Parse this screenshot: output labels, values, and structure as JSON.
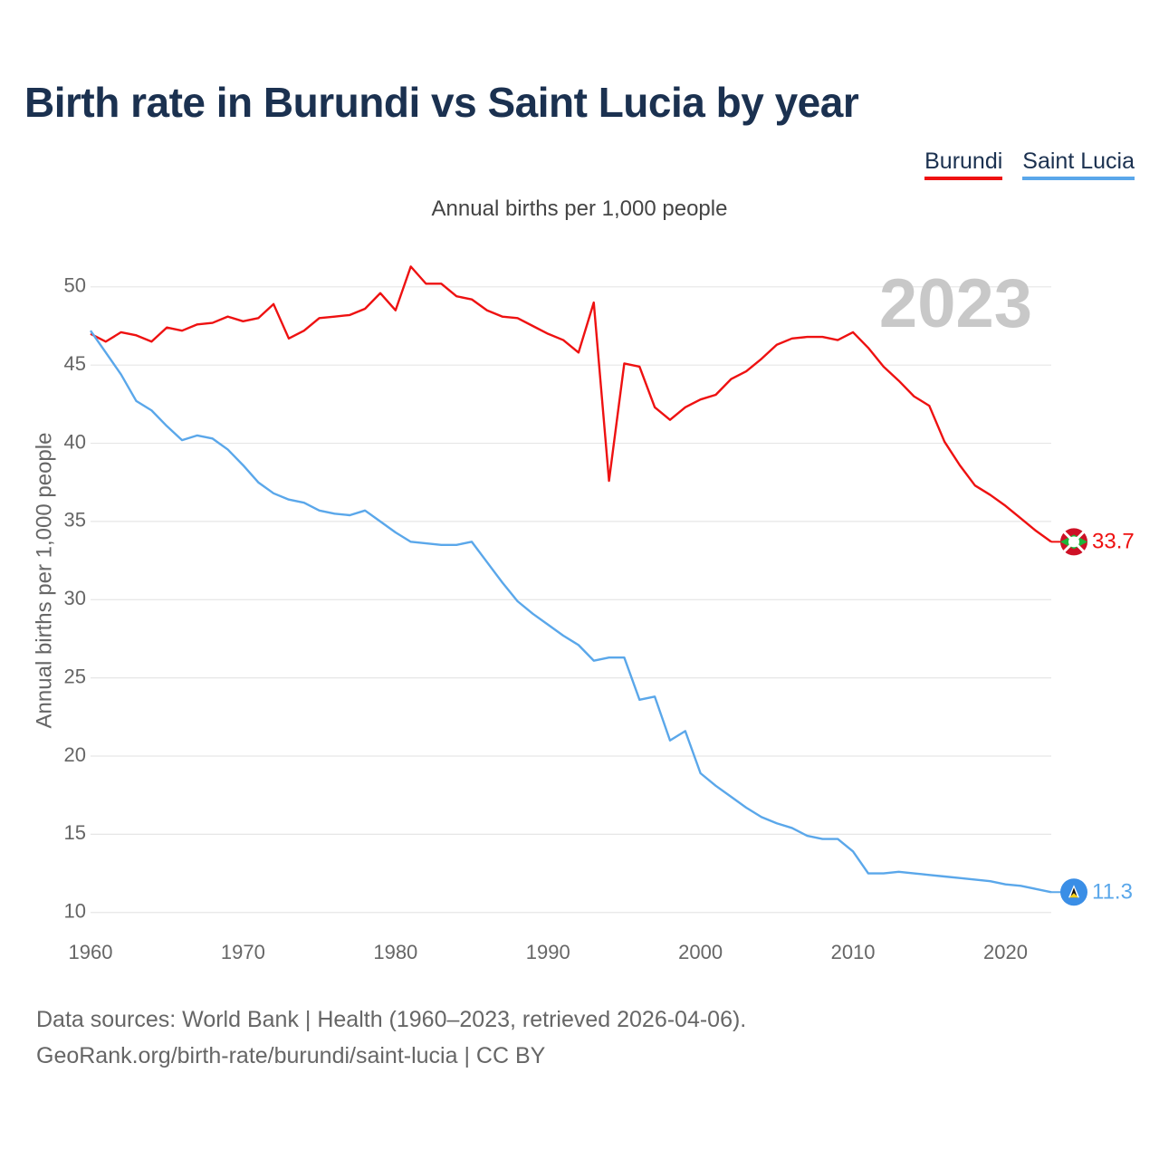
{
  "header": {
    "title": "Birth rate in Burundi vs Saint Lucia by year",
    "subtitle": "Annual births per 1,000 people"
  },
  "legend": {
    "items": [
      {
        "label": "Burundi",
        "color": "#ee1111"
      },
      {
        "label": "Saint Lucia",
        "color": "#5aa7ea"
      }
    ]
  },
  "footer": {
    "line1": "Data sources: World Bank | Health (1960–2023, retrieved 2026-04-06).",
    "line2": "GeoRank.org/birth-rate/burundi/saint-lucia | CC BY"
  },
  "chart_data": {
    "type": "line",
    "title": "Birth rate in Burundi vs Saint Lucia by year",
    "subtitle": "Annual births per 1,000 people",
    "ylabel": "Annual births per 1,000 people",
    "xlabel": "",
    "year_label": "2023",
    "x": [
      1960,
      1961,
      1962,
      1963,
      1964,
      1965,
      1966,
      1967,
      1968,
      1969,
      1970,
      1971,
      1972,
      1973,
      1974,
      1975,
      1976,
      1977,
      1978,
      1979,
      1980,
      1981,
      1982,
      1983,
      1984,
      1985,
      1986,
      1987,
      1988,
      1989,
      1990,
      1991,
      1992,
      1993,
      1994,
      1995,
      1996,
      1997,
      1998,
      1999,
      2000,
      2001,
      2002,
      2003,
      2004,
      2005,
      2006,
      2007,
      2008,
      2009,
      2010,
      2011,
      2012,
      2013,
      2014,
      2015,
      2016,
      2017,
      2018,
      2019,
      2020,
      2021,
      2022,
      2023
    ],
    "xlim": [
      1960,
      2023
    ],
    "ylim": [
      9,
      53
    ],
    "xticks": [
      1960,
      1970,
      1980,
      1990,
      2000,
      2010,
      2020
    ],
    "yticks": [
      10,
      15,
      20,
      25,
      30,
      35,
      40,
      45,
      50
    ],
    "grid": true,
    "legend_position": "top-right",
    "series": [
      {
        "name": "Burundi",
        "color": "#ee1111",
        "end_label": "33.7",
        "values": [
          47.0,
          46.5,
          47.1,
          46.9,
          46.5,
          47.4,
          47.2,
          47.6,
          47.7,
          48.1,
          47.8,
          48.0,
          48.9,
          46.7,
          47.2,
          48.0,
          48.1,
          48.2,
          48.6,
          49.6,
          48.5,
          51.3,
          50.2,
          50.2,
          49.4,
          49.2,
          48.5,
          48.1,
          48.0,
          47.5,
          47.0,
          46.6,
          45.8,
          49.0,
          37.6,
          45.1,
          44.9,
          42.3,
          41.5,
          42.3,
          42.8,
          43.1,
          44.1,
          44.6,
          45.4,
          46.3,
          46.7,
          46.8,
          46.8,
          46.6,
          47.1,
          46.1,
          44.9,
          44.0,
          43.0,
          42.4,
          40.1,
          38.6,
          37.3,
          36.7,
          36.0,
          35.2,
          34.4,
          33.7
        ]
      },
      {
        "name": "Saint Lucia",
        "color": "#5aa7ea",
        "end_label": "11.3",
        "values": [
          47.2,
          45.8,
          44.4,
          42.7,
          42.1,
          41.1,
          40.2,
          40.5,
          40.3,
          39.6,
          38.6,
          37.5,
          36.8,
          36.4,
          36.2,
          35.7,
          35.5,
          35.4,
          35.7,
          35.0,
          34.3,
          33.7,
          33.6,
          33.5,
          33.5,
          33.7,
          32.4,
          31.1,
          29.9,
          29.1,
          28.4,
          27.7,
          27.1,
          26.1,
          26.3,
          26.3,
          23.6,
          23.8,
          21.0,
          21.6,
          18.9,
          18.1,
          17.4,
          16.7,
          16.1,
          15.7,
          15.4,
          14.9,
          14.7,
          14.7,
          13.9,
          12.5,
          12.5,
          12.6,
          12.5,
          12.4,
          12.3,
          12.2,
          12.1,
          12.0,
          11.8,
          11.7,
          11.5,
          11.3
        ]
      }
    ]
  }
}
